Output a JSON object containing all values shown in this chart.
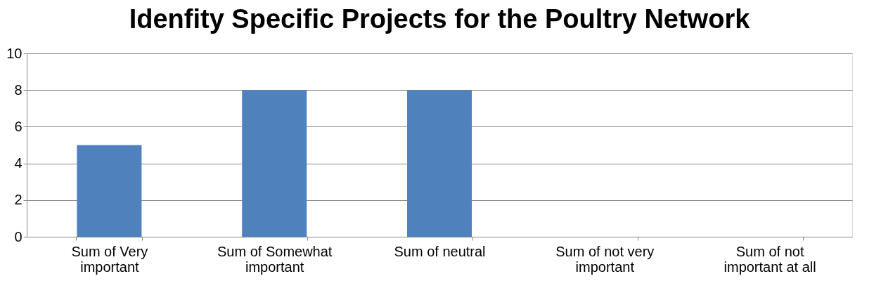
{
  "chart_data": {
    "type": "bar",
    "title": "Idenfity Specific Projects for the Poultry Network",
    "categories": [
      "Sum of Very important",
      "Sum of Somewhat important",
      "Sum of neutral",
      "Sum of not very important",
      "Sum of not important at all"
    ],
    "values": [
      5,
      8,
      8,
      0,
      0
    ],
    "color": "#4f81bd",
    "ylim": [
      0,
      10
    ],
    "yticks": [
      0,
      2,
      4,
      6,
      8,
      10
    ],
    "grid": "y"
  }
}
